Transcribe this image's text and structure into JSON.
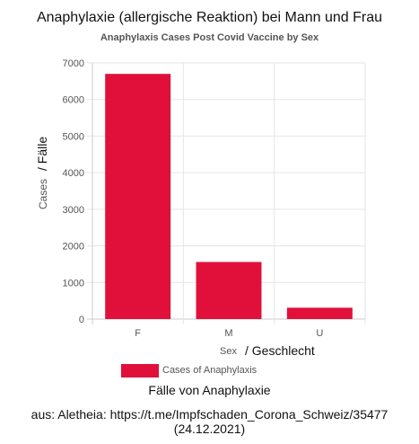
{
  "header": {
    "title_de": "Anaphylaxie (allergische Reaktion) bei Mann und Frau",
    "title_en": "Anaphylaxis Cases Post Covid Vaccine by Sex"
  },
  "chart_data": {
    "type": "bar",
    "categories": [
      "F",
      "M",
      "U"
    ],
    "series": [
      {
        "name": "Cases of Anaphylaxis",
        "values": [
          6700,
          1560,
          310
        ],
        "color": "#e0103a"
      }
    ],
    "ylim": [
      0,
      7000
    ],
    "yticks": [
      "0",
      "1000",
      "2000",
      "3000",
      "4000",
      "5000",
      "6000",
      "7000"
    ],
    "ylabel_en": "Cases",
    "ylabel_de": "/ Fälle",
    "xlabel_en": "Sex",
    "xlabel_de": "/ Geschlecht",
    "grid": true,
    "legend_position": "bottom"
  },
  "legend": {
    "label": "Cases of Anaphylaxis",
    "label_de": "Fälle von Anaphylaxie"
  },
  "source": {
    "line1": "aus: Aletheia: https://t.me/Impfschaden_Corona_Schweiz/35477",
    "line2": "(24.12.2021)"
  }
}
